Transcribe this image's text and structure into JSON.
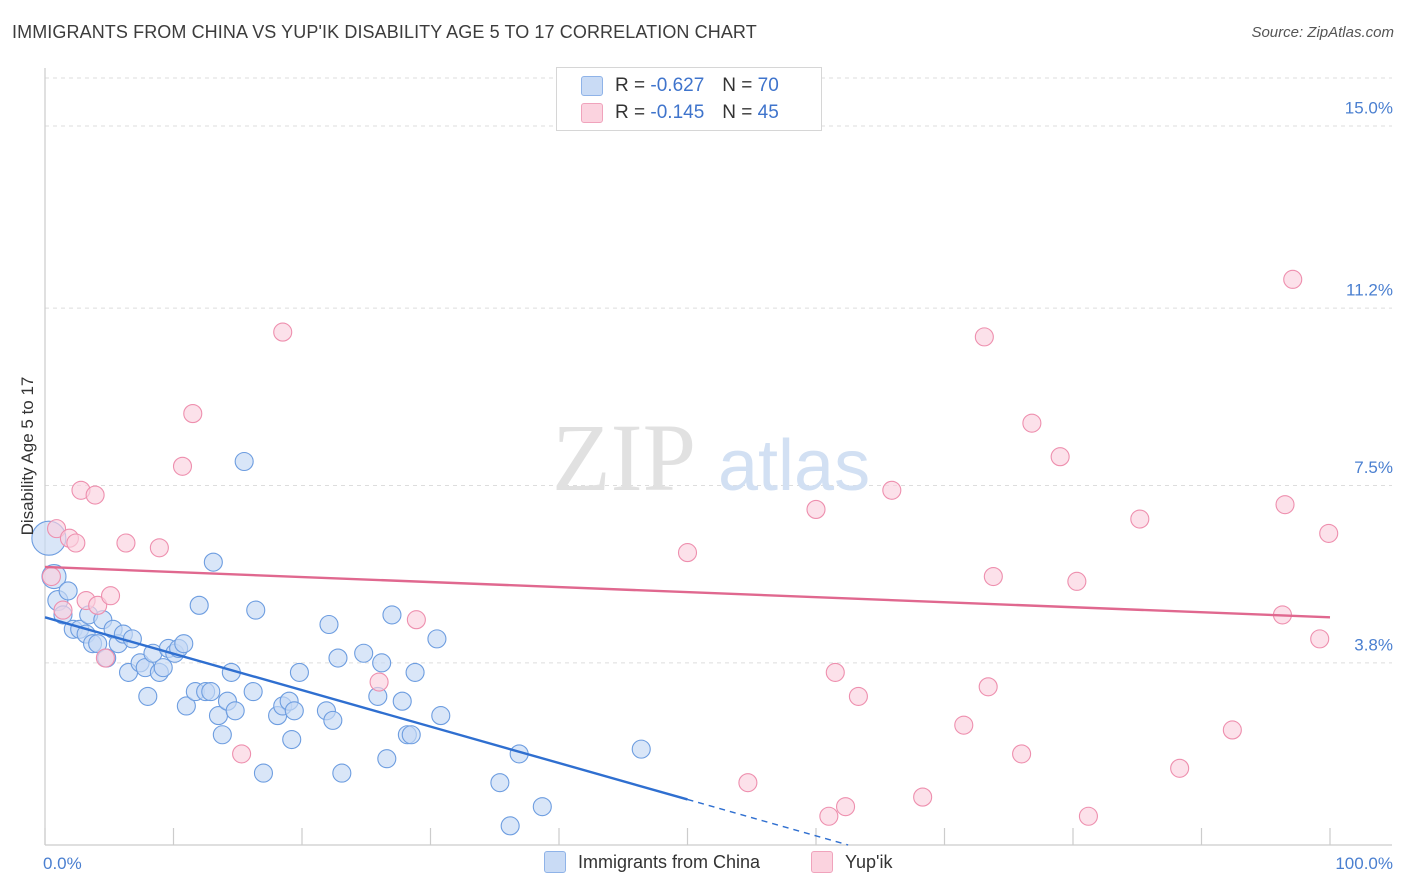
{
  "title": "IMMIGRANTS FROM CHINA VS YUP'IK DISABILITY AGE 5 TO 17 CORRELATION CHART",
  "source": "Source: ZipAtlas.com",
  "watermark": {
    "zip": "ZIP",
    "atlas": "atlas"
  },
  "legend_top": {
    "rows": [
      {
        "r_label": "R = ",
        "r_value": "-0.627",
        "n_label": "N = ",
        "n_value": "70",
        "color": "#8fb3e8",
        "fill": "#c9dbf5"
      },
      {
        "r_label": "R = ",
        "r_value": "-0.145",
        "n_label": "N = ",
        "n_value": "45",
        "color": "#f0a3bc",
        "fill": "#fbd3df"
      }
    ]
  },
  "legend_bottom": [
    {
      "label": "Immigrants from China",
      "color": "#8fb3e8",
      "fill": "#c9dbf5"
    },
    {
      "label": "Yup'ik",
      "color": "#f0a3bc",
      "fill": "#fbd3df"
    }
  ],
  "chart_data": {
    "type": "scatter",
    "title": "IMMIGRANTS FROM CHINA VS YUP'IK DISABILITY AGE 5 TO 17 CORRELATION CHART",
    "xlabel": "",
    "ylabel": "Disability Age 5 to 17",
    "xlim": [
      0,
      100
    ],
    "ylim": [
      0,
      16
    ],
    "x_tick_labels": [
      "0.0%",
      "100.0%"
    ],
    "y_ticks": [
      3.8,
      7.5,
      11.2,
      15.0
    ],
    "y_tick_labels": [
      "3.8%",
      "7.5%",
      "11.2%",
      "15.0%"
    ],
    "grid": true,
    "series": [
      {
        "name": "Immigrants from China",
        "color": "#6d9de0",
        "fill": "#c4d8f4",
        "trend": {
          "x0": 0,
          "y0": 4.75,
          "x1": 50,
          "y1": 0.95,
          "dash_to_x": 62.5
        },
        "points": [
          [
            0.3,
            6.4
          ],
          [
            0.7,
            5.6
          ],
          [
            1.0,
            5.1
          ],
          [
            1.4,
            4.8
          ],
          [
            1.8,
            5.3
          ],
          [
            2.2,
            4.5
          ],
          [
            2.7,
            4.5
          ],
          [
            3.2,
            4.4
          ],
          [
            3.4,
            4.8
          ],
          [
            3.7,
            4.2
          ],
          [
            4.1,
            4.2
          ],
          [
            4.5,
            4.7
          ],
          [
            4.8,
            3.9
          ],
          [
            5.3,
            4.5
          ],
          [
            5.7,
            4.2
          ],
          [
            6.1,
            4.4
          ],
          [
            6.5,
            3.6
          ],
          [
            6.8,
            4.3
          ],
          [
            7.4,
            3.8
          ],
          [
            7.8,
            3.7
          ],
          [
            8.0,
            3.1
          ],
          [
            8.4,
            4.0
          ],
          [
            8.9,
            3.6
          ],
          [
            9.2,
            3.7
          ],
          [
            9.6,
            4.1
          ],
          [
            10.1,
            4.0
          ],
          [
            10.4,
            4.1
          ],
          [
            10.8,
            4.2
          ],
          [
            11.0,
            2.9
          ],
          [
            11.7,
            3.2
          ],
          [
            12.0,
            5.0
          ],
          [
            12.5,
            3.2
          ],
          [
            12.9,
            3.2
          ],
          [
            13.1,
            5.9
          ],
          [
            13.5,
            2.7
          ],
          [
            13.8,
            2.3
          ],
          [
            14.2,
            3.0
          ],
          [
            14.5,
            3.6
          ],
          [
            14.8,
            2.8
          ],
          [
            15.5,
            8.0
          ],
          [
            16.2,
            3.2
          ],
          [
            16.4,
            4.9
          ],
          [
            17.0,
            1.5
          ],
          [
            18.1,
            2.7
          ],
          [
            18.5,
            2.9
          ],
          [
            19.0,
            3.0
          ],
          [
            19.2,
            2.2
          ],
          [
            19.4,
            2.8
          ],
          [
            19.8,
            3.6
          ],
          [
            21.9,
            2.8
          ],
          [
            22.1,
            4.6
          ],
          [
            22.4,
            2.6
          ],
          [
            22.8,
            3.9
          ],
          [
            23.1,
            1.5
          ],
          [
            24.8,
            4.0
          ],
          [
            25.9,
            3.1
          ],
          [
            26.2,
            3.8
          ],
          [
            26.6,
            1.8
          ],
          [
            27.0,
            4.8
          ],
          [
            27.8,
            3.0
          ],
          [
            28.2,
            2.3
          ],
          [
            28.5,
            2.3
          ],
          [
            28.8,
            3.6
          ],
          [
            30.5,
            4.3
          ],
          [
            30.8,
            2.7
          ],
          [
            35.4,
            1.3
          ],
          [
            36.2,
            0.4
          ],
          [
            36.9,
            1.9
          ],
          [
            38.7,
            0.8
          ],
          [
            46.4,
            2.0
          ]
        ]
      },
      {
        "name": "Yup'ik",
        "color": "#ee8fae",
        "fill": "#fbd1de",
        "trend": {
          "x0": 0,
          "y0": 5.8,
          "x1": 100,
          "y1": 4.75
        },
        "points": [
          [
            0.5,
            5.6
          ],
          [
            0.9,
            6.6
          ],
          [
            1.4,
            4.9
          ],
          [
            1.9,
            6.4
          ],
          [
            2.4,
            6.3
          ],
          [
            2.8,
            7.4
          ],
          [
            3.2,
            5.1
          ],
          [
            3.9,
            7.3
          ],
          [
            4.1,
            5.0
          ],
          [
            4.7,
            3.9
          ],
          [
            5.1,
            5.2
          ],
          [
            6.3,
            6.3
          ],
          [
            8.9,
            6.2
          ],
          [
            10.7,
            7.9
          ],
          [
            11.5,
            9.0
          ],
          [
            15.3,
            1.9
          ],
          [
            18.5,
            10.7
          ],
          [
            26.0,
            3.4
          ],
          [
            28.9,
            4.7
          ],
          [
            50.0,
            6.1
          ],
          [
            54.7,
            1.3
          ],
          [
            60.0,
            7.0
          ],
          [
            61.0,
            0.6
          ],
          [
            61.5,
            3.6
          ],
          [
            62.3,
            0.8
          ],
          [
            63.3,
            3.1
          ],
          [
            65.9,
            7.4
          ],
          [
            68.3,
            1.0
          ],
          [
            71.5,
            2.5
          ],
          [
            73.1,
            10.6
          ],
          [
            73.4,
            3.3
          ],
          [
            73.8,
            5.6
          ],
          [
            76.0,
            1.9
          ],
          [
            76.8,
            8.8
          ],
          [
            79.0,
            8.1
          ],
          [
            80.3,
            5.5
          ],
          [
            81.2,
            0.6
          ],
          [
            85.2,
            6.8
          ],
          [
            88.3,
            1.6
          ],
          [
            92.4,
            2.4
          ],
          [
            96.3,
            4.8
          ],
          [
            96.5,
            7.1
          ],
          [
            97.1,
            11.8
          ],
          [
            99.2,
            4.3
          ],
          [
            99.9,
            6.5
          ]
        ]
      }
    ]
  }
}
